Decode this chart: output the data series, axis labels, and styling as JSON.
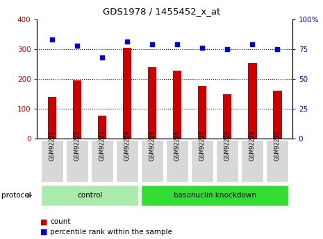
{
  "title": "GDS1978 / 1455452_x_at",
  "samples": [
    "GSM92221",
    "GSM92222",
    "GSM92223",
    "GSM92224",
    "GSM92225",
    "GSM92226",
    "GSM92227",
    "GSM92228",
    "GSM92229",
    "GSM92230"
  ],
  "counts": [
    140,
    195,
    77,
    305,
    238,
    228,
    177,
    148,
    252,
    160
  ],
  "percentiles": [
    83,
    78,
    68,
    81,
    79,
    79,
    76,
    75,
    79,
    75
  ],
  "groups": [
    "control",
    "control",
    "control",
    "control",
    "basonuclin knockdown",
    "basonuclin knockdown",
    "basonuclin knockdown",
    "basonuclin knockdown",
    "basonuclin knockdown",
    "basonuclin knockdown"
  ],
  "group_colors": {
    "control": "#aaeaaa",
    "basonuclin knockdown": "#33dd33"
  },
  "bar_color": "#cc0000",
  "dot_color": "#0000cc",
  "left_ylim": [
    0,
    400
  ],
  "right_ylim": [
    0,
    100
  ],
  "left_yticks": [
    0,
    100,
    200,
    300,
    400
  ],
  "right_yticks": [
    0,
    25,
    50,
    75,
    100
  ],
  "right_yticklabels": [
    "0",
    "25",
    "50",
    "75",
    "100%"
  ],
  "grid_values": [
    100,
    200,
    300
  ],
  "left_ycolor": "#cc0000",
  "right_ycolor": "#0000cc",
  "protocol_label": "protocol",
  "legend_count_label": "count",
  "legend_percentile_label": "percentile rank within the sample"
}
